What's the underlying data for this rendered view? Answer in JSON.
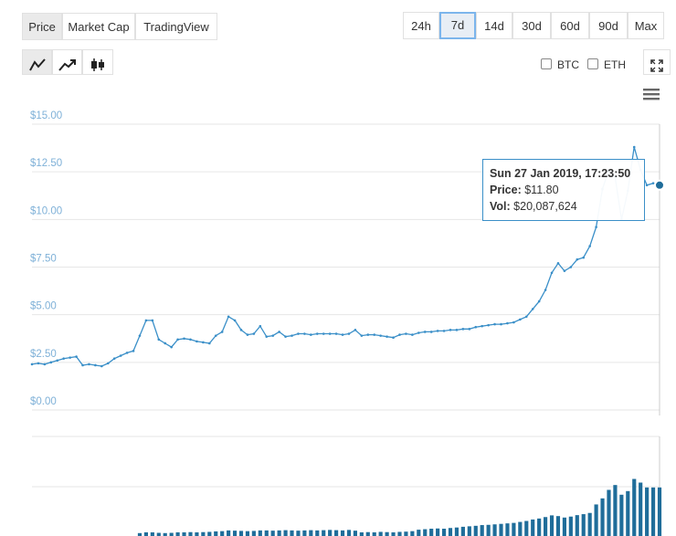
{
  "tabs": [
    "Price",
    "Market Cap",
    "TradingView"
  ],
  "tab_selected": 0,
  "ranges": [
    "24h",
    "7d",
    "14d",
    "30d",
    "60d",
    "90d",
    "Max"
  ],
  "range_selected": 1,
  "compare": [
    "BTC",
    "ETH"
  ],
  "tooltip": {
    "date": "Sun 27 Jan 2019, 17:23:50",
    "price_label": "Price:",
    "price": "$11.80",
    "vol_label": "Vol:",
    "vol": "$20,087,624"
  },
  "chart_data": [
    {
      "type": "line",
      "color": "#3a8fc8",
      "grid": true,
      "ylim": [
        0,
        15
      ],
      "yticks": [
        {
          "value": 0,
          "label": "$0.00"
        },
        {
          "value": 2.5,
          "label": "$2.50"
        },
        {
          "value": 5,
          "label": "$5.00"
        },
        {
          "value": 7.5,
          "label": "$7.50"
        },
        {
          "value": 10,
          "label": "$10.00"
        },
        {
          "value": 12.5,
          "label": "$12.50"
        },
        {
          "value": 15,
          "label": "$15.00"
        }
      ],
      "values": [
        2.4,
        2.45,
        2.4,
        2.5,
        2.6,
        2.7,
        2.75,
        2.8,
        2.35,
        2.4,
        2.35,
        2.3,
        2.45,
        2.7,
        2.85,
        3.0,
        3.1,
        3.9,
        4.7,
        4.7,
        3.7,
        3.5,
        3.3,
        3.7,
        3.75,
        3.7,
        3.6,
        3.55,
        3.5,
        3.9,
        4.1,
        4.9,
        4.7,
        4.2,
        3.95,
        4.0,
        4.4,
        3.85,
        3.9,
        4.1,
        3.85,
        3.9,
        4.0,
        4.0,
        3.95,
        4.0,
        4.0,
        4.0,
        4.0,
        3.95,
        4.0,
        4.2,
        3.9,
        3.95,
        3.95,
        3.9,
        3.85,
        3.8,
        3.95,
        4.0,
        3.95,
        4.05,
        4.1,
        4.1,
        4.15,
        4.15,
        4.2,
        4.2,
        4.25,
        4.25,
        4.35,
        4.4,
        4.45,
        4.5,
        4.5,
        4.55,
        4.6,
        4.75,
        4.9,
        5.3,
        5.7,
        6.3,
        7.2,
        7.7,
        7.3,
        7.5,
        7.9,
        8.0,
        8.6,
        9.6,
        11.6,
        12.6,
        12.2,
        10.0,
        11.5,
        13.8,
        12.6,
        11.8,
        11.9,
        11.8
      ]
    },
    {
      "type": "bar",
      "color": "#1f6d9a",
      "ylim": [
        0,
        41000000
      ],
      "values": [
        0,
        0,
        0,
        0,
        0,
        0,
        0,
        0,
        0,
        0,
        0,
        0,
        0,
        0,
        0,
        0,
        0,
        1200000,
        1500000,
        1500000,
        1300000,
        1200000,
        1300000,
        1500000,
        1500000,
        1600000,
        1500000,
        1600000,
        1700000,
        1900000,
        2000000,
        2300000,
        2200000,
        2100000,
        2000000,
        2100000,
        2300000,
        2300000,
        2200000,
        2300000,
        2400000,
        2300000,
        2200000,
        2300000,
        2400000,
        2300000,
        2400000,
        2500000,
        2400000,
        2300000,
        2500000,
        2200000,
        1500000,
        1600000,
        1500000,
        1700000,
        1600000,
        1500000,
        1700000,
        1800000,
        2000000,
        2600000,
        2800000,
        3000000,
        3100000,
        3000000,
        3300000,
        3500000,
        3800000,
        4000000,
        4200000,
        4500000,
        4600000,
        4800000,
        5000000,
        5200000,
        5400000,
        5800000,
        6200000,
        6800000,
        7200000,
        7800000,
        8500000,
        8200000,
        7600000,
        8000000,
        8600000,
        9000000,
        9500000,
        13000000,
        15500000,
        19000000,
        21000000,
        17000000,
        18500000,
        23500000,
        22000000,
        20000000,
        20000000,
        20000000
      ]
    }
  ]
}
